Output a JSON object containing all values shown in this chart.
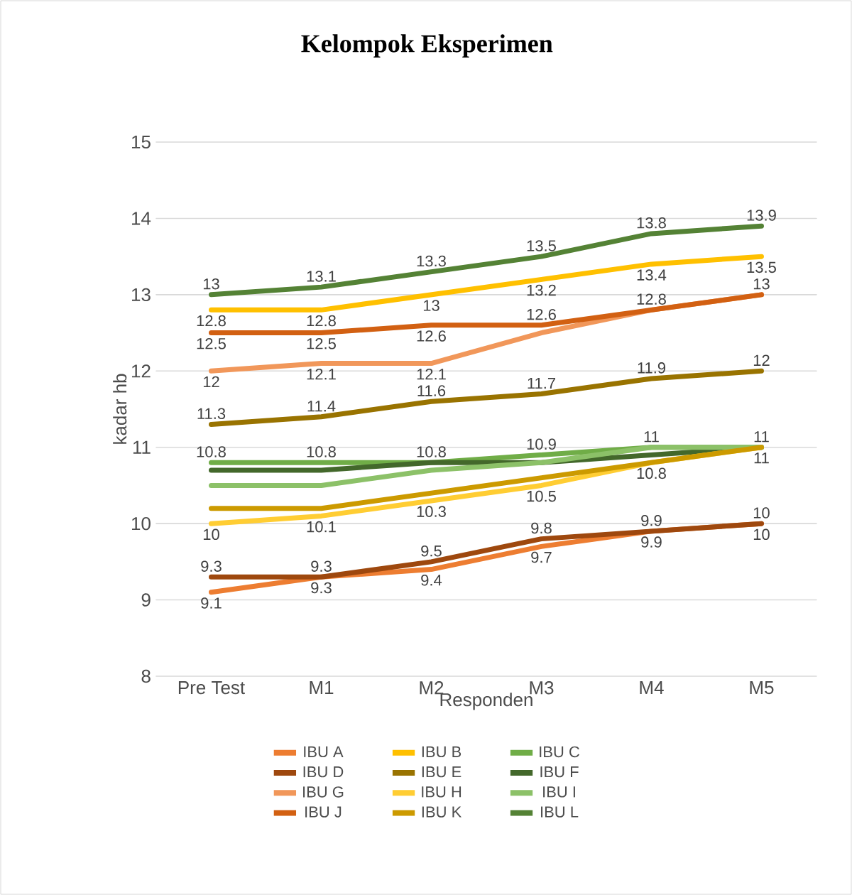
{
  "chart_data": {
    "type": "line",
    "title": "Kelompok Eksperimen",
    "xlabel": "Responden",
    "ylabel": "kadar hb",
    "categories": [
      "Pre Test",
      "M1",
      "M2",
      "M3",
      "M4",
      "M5"
    ],
    "series": [
      {
        "name": "IBU A",
        "color": "#ed7d31",
        "values": [
          9.1,
          9.3,
          9.4,
          9.7,
          9.9,
          10
        ],
        "value_labels": [
          "9.1",
          "9.3",
          "9.4",
          "9.7",
          "9.9",
          "10"
        ]
      },
      {
        "name": "IBU B",
        "color": "#ffc000",
        "values": [
          12.8,
          12.8,
          13,
          13.2,
          13.4,
          13.5
        ],
        "value_labels": [
          "12.8",
          "12.8",
          "13",
          "13.2",
          "13.4",
          "13.5"
        ]
      },
      {
        "name": "IBU C",
        "color": "#70ad47",
        "values": [
          10.8,
          10.8,
          10.8,
          10.9,
          11,
          11
        ],
        "value_labels": [
          "10.8",
          "10.8",
          "10.8",
          "10.9",
          "11",
          "11"
        ]
      },
      {
        "name": "IBU D",
        "color": "#9e480e",
        "values": [
          9.3,
          9.3,
          9.5,
          9.8,
          9.9,
          10
        ],
        "value_labels": [
          "9.3",
          "9.3",
          "9.5",
          "9.8",
          "9.9",
          "10"
        ]
      },
      {
        "name": "IBU E",
        "color": "#997300",
        "values": [
          11.3,
          11.4,
          11.6,
          11.7,
          11.9,
          12
        ],
        "value_labels": [
          "11.3",
          "11.4",
          "11.6",
          "11.7",
          "11.9",
          "12"
        ]
      },
      {
        "name": "IBU F",
        "color": "#43682b",
        "values": [
          10.7,
          10.7,
          10.8,
          10.8,
          10.9,
          11
        ],
        "value_labels": [
          null,
          null,
          null,
          null,
          null,
          null
        ]
      },
      {
        "name": "IBU G",
        "color": "#f1975a",
        "values": [
          12,
          12.1,
          12.1,
          12.5,
          12.8,
          13
        ],
        "value_labels": [
          "12",
          "12.1",
          "12.1",
          null,
          null,
          null
        ]
      },
      {
        "name": "IBU H",
        "color": "#ffcd33",
        "values": [
          10,
          10.1,
          10.3,
          10.5,
          10.8,
          11
        ],
        "value_labels": [
          "10",
          "10.1",
          "10.3",
          "10.5",
          "10.8",
          "11"
        ]
      },
      {
        "name": "IBU I",
        "color": "#8cc168",
        "values": [
          10.5,
          10.5,
          10.7,
          10.8,
          11,
          11
        ],
        "value_labels": [
          null,
          null,
          null,
          null,
          null,
          null
        ]
      },
      {
        "name": "IBU J",
        "color": "#d26012",
        "values": [
          12.5,
          12.5,
          12.6,
          12.6,
          12.8,
          13
        ],
        "value_labels": [
          "12.5",
          "12.5",
          "12.6",
          "12.6",
          "12.8",
          "13"
        ]
      },
      {
        "name": "IBU K",
        "color": "#cc9a00",
        "values": [
          10.2,
          10.2,
          10.4,
          10.6,
          10.8,
          11
        ],
        "value_labels": [
          null,
          null,
          null,
          null,
          null,
          null
        ]
      },
      {
        "name": "IBU L",
        "color": "#548235",
        "values": [
          13,
          13.1,
          13.3,
          13.5,
          13.8,
          13.9
        ],
        "value_labels": [
          "13",
          "13.1",
          "13.3",
          "13.5",
          "13.8",
          "13.9"
        ]
      }
    ],
    "ylim": [
      8,
      15
    ],
    "yticks": [
      8,
      9,
      10,
      11,
      12,
      13,
      14,
      15
    ],
    "grid": "y",
    "legend": "bottom",
    "marker": "none",
    "line_style": "solid"
  }
}
